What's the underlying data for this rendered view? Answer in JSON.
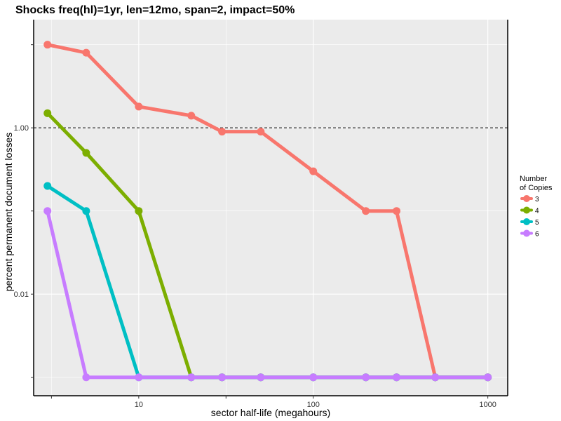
{
  "chart_data": {
    "type": "line",
    "title": "Shocks freq(hl)=1yr, len=12mo, span=2, impact=50%",
    "xlabel": "sector half-life (megahours)",
    "ylabel": "percent permanent document losses",
    "x_scale": "log",
    "y_scale": "log",
    "xlim": [
      2.5,
      1300
    ],
    "ylim": [
      0.0006,
      20
    ],
    "x_ticks": [
      10,
      100,
      1000
    ],
    "x_tick_labels": [
      "10",
      "100",
      "1000"
    ],
    "y_ticks": [
      0.01,
      1
    ],
    "y_tick_labels": [
      "0.01",
      "1.00"
    ],
    "reference_line": {
      "y": 1,
      "style": "dashed"
    },
    "legend": {
      "title": "Number of Copies",
      "title_lines": [
        "Number",
        "of Copies"
      ],
      "placement": "right"
    },
    "background": "#ebebeb",
    "grid": true,
    "series": [
      {
        "name": "3",
        "color": "#f8766d",
        "x": [
          3,
          5,
          10,
          20,
          30,
          50,
          100,
          200,
          300,
          500,
          1000
        ],
        "y": [
          10,
          8,
          1.8,
          1.4,
          0.9,
          0.9,
          0.3,
          0.1,
          0.1,
          0.001,
          0.001
        ]
      },
      {
        "name": "4",
        "color": "#7cae00",
        "x": [
          3,
          5,
          10,
          20,
          30,
          50,
          100,
          200,
          300,
          500,
          1000
        ],
        "y": [
          1.5,
          0.5,
          0.1,
          0.001,
          0.001,
          0.001,
          0.001,
          0.001,
          0.001,
          0.001,
          0.001
        ]
      },
      {
        "name": "5",
        "color": "#00bfc4",
        "x": [
          3,
          5,
          10,
          20,
          30,
          50,
          100,
          200,
          300,
          500,
          1000
        ],
        "y": [
          0.2,
          0.1,
          0.001,
          0.001,
          0.001,
          0.001,
          0.001,
          0.001,
          0.001,
          0.001,
          0.001
        ]
      },
      {
        "name": "6",
        "color": "#c77cff",
        "x": [
          3,
          5,
          10,
          20,
          30,
          50,
          100,
          200,
          300,
          500,
          1000
        ],
        "y": [
          0.1,
          0.001,
          0.001,
          0.001,
          0.001,
          0.001,
          0.001,
          0.001,
          0.001,
          0.001,
          0.001
        ]
      }
    ]
  }
}
